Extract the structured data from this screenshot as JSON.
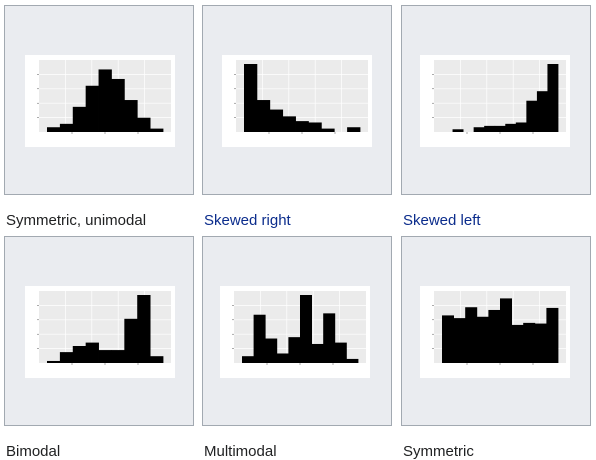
{
  "gallery": {
    "items": [
      {
        "key": "symmetric-unimodal",
        "caption": "Symmetric, unimodal",
        "is_link": false,
        "bin_heights": [
          0.07,
          0.12,
          0.37,
          0.68,
          0.92,
          0.78,
          0.47,
          0.21,
          0.05
        ]
      },
      {
        "key": "skewed-right",
        "caption": "Skewed right",
        "is_link": true,
        "bin_heights": [
          1.0,
          0.47,
          0.33,
          0.23,
          0.16,
          0.14,
          0.05,
          0.0,
          0.07
        ]
      },
      {
        "key": "skewed-left",
        "caption": "Skewed left",
        "is_link": true,
        "bin_heights": [
          0.0,
          0.04,
          0.0,
          0.07,
          0.09,
          0.09,
          0.12,
          0.14,
          0.46,
          0.6,
          1.0
        ]
      },
      {
        "key": "bimodal",
        "caption": "Bimodal",
        "is_link": false,
        "bin_heights": [
          0.03,
          0.16,
          0.25,
          0.3,
          0.19,
          0.19,
          0.65,
          1.0,
          0.1
        ]
      },
      {
        "key": "multimodal",
        "caption": "Multimodal",
        "is_link": false,
        "bin_heights": [
          0.1,
          0.71,
          0.36,
          0.14,
          0.38,
          1.0,
          0.28,
          0.73,
          0.3,
          0.06
        ]
      },
      {
        "key": "symmetric",
        "caption": "Symmetric",
        "is_link": false,
        "bin_heights": [
          0.7,
          0.66,
          0.82,
          0.68,
          0.78,
          0.95,
          0.56,
          0.59,
          0.58,
          0.81
        ]
      }
    ]
  },
  "colors": {
    "thumb_bg": "#eaecf0",
    "thumb_border": "#a2a9b1",
    "plot_panel": "#ebebeb",
    "grid": "#ffffff",
    "bar": "#000000",
    "link": "#0b2c8c",
    "text": "#202122"
  }
}
